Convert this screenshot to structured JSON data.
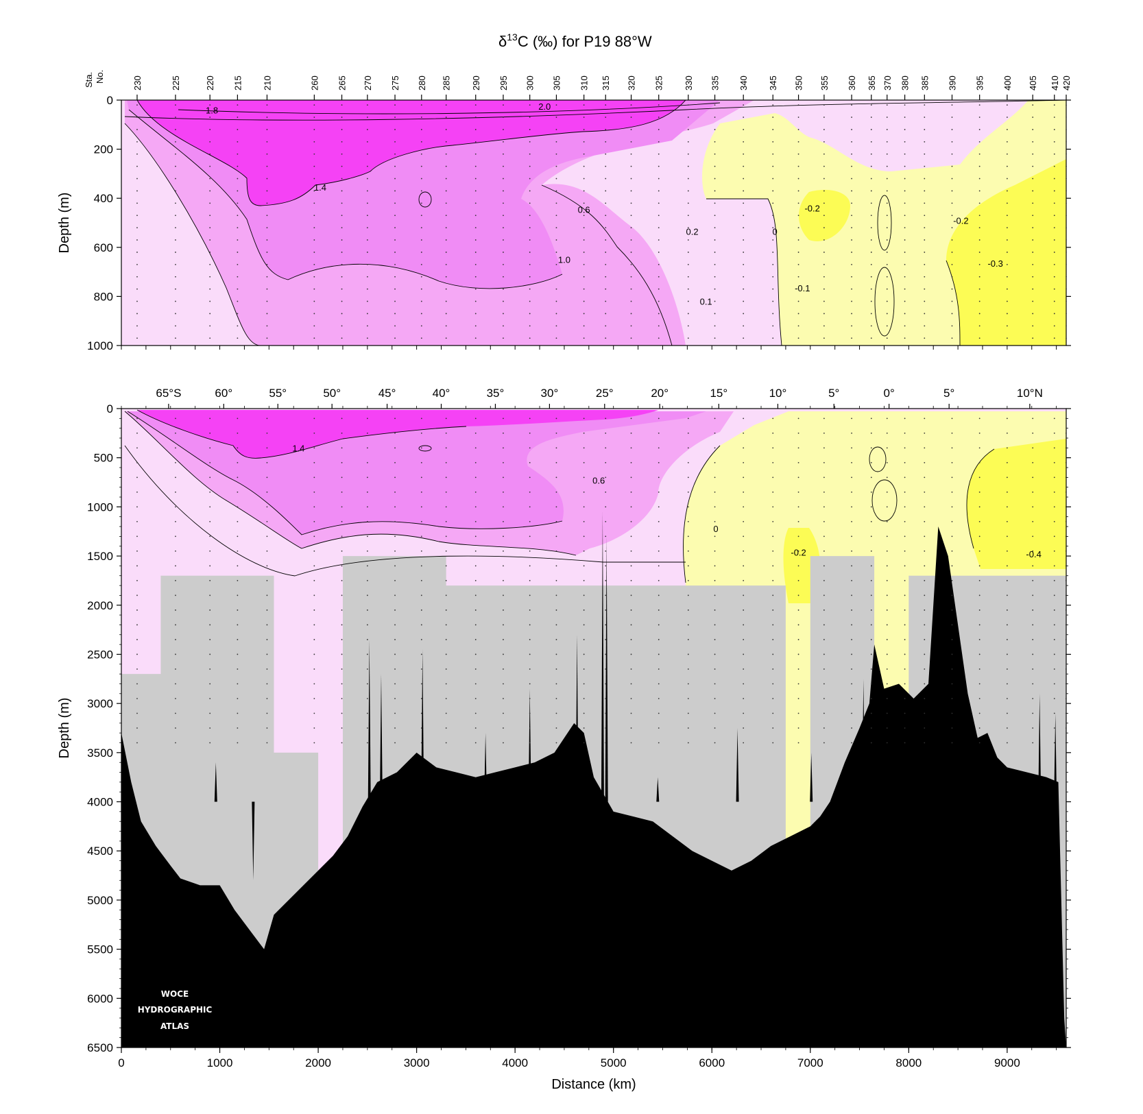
{
  "title": {
    "delta": "δ",
    "sup": "13",
    "rest": "C (‰) for P19 88°W"
  },
  "logo": [
    "WOCE",
    "HYDROGRAPHIC",
    "ATLAS"
  ],
  "colors": {
    "magenta_strong": "#f542f5",
    "magenta_mid": "#f08cf5",
    "pink_light": "#f5a8f5",
    "pink_pale": "#fadcfa",
    "yellow_pale": "#fcfcb0",
    "yellow_strong": "#fcfc55",
    "masked_gray": "#cccccc",
    "bathymetry": "#000000"
  },
  "chart_data": [
    {
      "type": "heatmap",
      "panel": "upper",
      "ylabel": "Depth (m)",
      "ylim": [
        1000,
        0
      ],
      "xlim": [
        0,
        9600
      ],
      "yticks": [
        0,
        200,
        400,
        600,
        800,
        1000
      ],
      "station_axis_label": [
        "Sta.",
        "No."
      ],
      "stations": [
        {
          "label": "230",
          "km": 160
        },
        {
          "label": "225",
          "km": 550
        },
        {
          "label": "220",
          "km": 900
        },
        {
          "label": "215",
          "km": 1180
        },
        {
          "label": "210",
          "km": 1480
        },
        {
          "label": "260",
          "km": 1960
        },
        {
          "label": "265",
          "km": 2240
        },
        {
          "label": "270",
          "km": 2500
        },
        {
          "label": "275",
          "km": 2780
        },
        {
          "label": "280",
          "km": 3050
        },
        {
          "label": "285",
          "km": 3300
        },
        {
          "label": "290",
          "km": 3600
        },
        {
          "label": "295",
          "km": 3880
        },
        {
          "label": "300",
          "km": 4150
        },
        {
          "label": "305",
          "km": 4420
        },
        {
          "label": "310",
          "km": 4700
        },
        {
          "label": "315",
          "km": 4920
        },
        {
          "label": "320",
          "km": 5180
        },
        {
          "label": "325",
          "km": 5460
        },
        {
          "label": "330",
          "km": 5760
        },
        {
          "label": "335",
          "km": 6030
        },
        {
          "label": "340",
          "km": 6320
        },
        {
          "label": "345",
          "km": 6620
        },
        {
          "label": "350",
          "km": 6880
        },
        {
          "label": "355",
          "km": 7140
        },
        {
          "label": "360",
          "km": 7420
        },
        {
          "label": "365",
          "km": 7620
        },
        {
          "label": "370",
          "km": 7780
        },
        {
          "label": "380",
          "km": 7960
        },
        {
          "label": "385",
          "km": 8160
        },
        {
          "label": "390",
          "km": 8440
        },
        {
          "label": "395",
          "km": 8720
        },
        {
          "label": "400",
          "km": 9000
        },
        {
          "label": "405",
          "km": 9260
        },
        {
          "label": "410",
          "km": 9480
        },
        {
          "label": "420",
          "km": 9600
        }
      ],
      "contour_labels": [
        {
          "text": "1.8",
          "km": 920,
          "depth": 40
        },
        {
          "text": "2.0",
          "km": 4300,
          "depth": 25
        },
        {
          "text": "1.4",
          "km": 2020,
          "depth": 355
        },
        {
          "text": "0.6",
          "km": 4700,
          "depth": 445
        },
        {
          "text": "0.2",
          "km": 5800,
          "depth": 535
        },
        {
          "text": "0",
          "km": 6640,
          "depth": 535
        },
        {
          "text": "-0.2",
          "km": 7020,
          "depth": 440
        },
        {
          "text": "-0.2",
          "km": 8530,
          "depth": 490
        },
        {
          "text": "1.0",
          "km": 4500,
          "depth": 650
        },
        {
          "text": "-0.3",
          "km": 8880,
          "depth": 665
        },
        {
          "text": "-0.1",
          "km": 6920,
          "depth": 765
        },
        {
          "text": "0.1",
          "km": 5940,
          "depth": 820
        }
      ]
    },
    {
      "type": "heatmap",
      "panel": "lower",
      "xlabel": "Distance (km)",
      "ylabel": "Depth (m)",
      "xlim": [
        0,
        9600
      ],
      "ylim": [
        6500,
        0
      ],
      "xticks": [
        0,
        1000,
        2000,
        3000,
        4000,
        5000,
        6000,
        7000,
        8000,
        9000
      ],
      "yticks": [
        0,
        500,
        1000,
        1500,
        2000,
        2500,
        3000,
        3500,
        4000,
        4500,
        5000,
        5500,
        6000,
        6500
      ],
      "latitudes": [
        {
          "label": "65°S",
          "km": 480
        },
        {
          "label": "60°",
          "km": 1040
        },
        {
          "label": "55°",
          "km": 1590
        },
        {
          "label": "50°",
          "km": 2140
        },
        {
          "label": "45°",
          "km": 2700
        },
        {
          "label": "40°",
          "km": 3250
        },
        {
          "label": "35°",
          "km": 3800
        },
        {
          "label": "30°",
          "km": 4350
        },
        {
          "label": "25°",
          "km": 4910
        },
        {
          "label": "20°",
          "km": 5470
        },
        {
          "label": "15°",
          "km": 6070
        },
        {
          "label": "10°",
          "km": 6670
        },
        {
          "label": "5°",
          "km": 7240
        },
        {
          "label": "0°",
          "km": 7800
        },
        {
          "label": "5°",
          "km": 8410
        },
        {
          "label": "10°N",
          "km": 9230
        }
      ],
      "contour_labels": [
        {
          "text": "1.4",
          "km": 1800,
          "depth": 400
        },
        {
          "text": "0.6",
          "km": 4850,
          "depth": 730
        },
        {
          "text": "0",
          "km": 6040,
          "depth": 1220
        },
        {
          "text": "-0.2",
          "km": 6880,
          "depth": 1460
        },
        {
          "text": "-0.4",
          "km": 9270,
          "depth": 1480
        }
      ],
      "masked_regions_km_depth": [
        {
          "x0": 0,
          "x1": 400,
          "y_top": 2700
        },
        {
          "x0": 400,
          "x1": 1550,
          "y_top": 1700
        },
        {
          "x0": 1550,
          "x1": 2000,
          "y_top": 3500
        },
        {
          "x0": 2250,
          "x1": 3300,
          "y_top": 1500
        },
        {
          "x0": 3300,
          "x1": 6750,
          "y_top": 1800
        },
        {
          "x0": 7000,
          "x1": 7650,
          "y_top": 1500
        },
        {
          "x0": 8000,
          "x1": 9600,
          "y_top": 1700
        }
      ],
      "bathymetry_profile": [
        [
          0,
          3300
        ],
        [
          100,
          3800
        ],
        [
          200,
          4200
        ],
        [
          350,
          4450
        ],
        [
          500,
          4650
        ],
        [
          600,
          4780
        ],
        [
          800,
          4850
        ],
        [
          1000,
          4850
        ],
        [
          1150,
          5100
        ],
        [
          1300,
          5300
        ],
        [
          1450,
          5500
        ],
        [
          1550,
          5150
        ],
        [
          1700,
          5000
        ],
        [
          1850,
          4850
        ],
        [
          2000,
          4700
        ],
        [
          2150,
          4550
        ],
        [
          2300,
          4350
        ],
        [
          2450,
          4050
        ],
        [
          2600,
          3800
        ],
        [
          2800,
          3700
        ],
        [
          3000,
          3500
        ],
        [
          3200,
          3650
        ],
        [
          3400,
          3700
        ],
        [
          3600,
          3750
        ],
        [
          3800,
          3700
        ],
        [
          4000,
          3650
        ],
        [
          4200,
          3600
        ],
        [
          4400,
          3500
        ],
        [
          4600,
          3200
        ],
        [
          4700,
          3300
        ],
        [
          4800,
          3750
        ],
        [
          5000,
          4100
        ],
        [
          5200,
          4150
        ],
        [
          5400,
          4200
        ],
        [
          5600,
          4350
        ],
        [
          5800,
          4500
        ],
        [
          6000,
          4600
        ],
        [
          6200,
          4700
        ],
        [
          6400,
          4600
        ],
        [
          6600,
          4450
        ],
        [
          6800,
          4350
        ],
        [
          7000,
          4250
        ],
        [
          7100,
          4150
        ],
        [
          7200,
          4000
        ],
        [
          7350,
          3600
        ],
        [
          7500,
          3250
        ],
        [
          7600,
          3000
        ],
        [
          7650,
          2400
        ],
        [
          7750,
          2850
        ],
        [
          7900,
          2800
        ],
        [
          8050,
          2950
        ],
        [
          8200,
          2800
        ],
        [
          8300,
          1200
        ],
        [
          8400,
          1500
        ],
        [
          8500,
          2200
        ],
        [
          8600,
          2900
        ],
        [
          8700,
          3350
        ],
        [
          8800,
          3300
        ],
        [
          8900,
          3550
        ],
        [
          9000,
          3650
        ],
        [
          9200,
          3700
        ],
        [
          9400,
          3750
        ],
        [
          9520,
          3800
        ],
        [
          9580,
          6200
        ],
        [
          9600,
          6500
        ]
      ],
      "bathymetry_spikes": [
        [
          960,
          3600
        ],
        [
          1340,
          4800
        ],
        [
          2520,
          2350
        ],
        [
          2640,
          2700
        ],
        [
          3060,
          2450
        ],
        [
          3700,
          3300
        ],
        [
          4150,
          2850
        ],
        [
          4630,
          2300
        ],
        [
          4890,
          1050
        ],
        [
          4930,
          1300
        ],
        [
          5450,
          3750
        ],
        [
          6260,
          3250
        ],
        [
          7010,
          3500
        ],
        [
          7540,
          2750
        ],
        [
          9330,
          2900
        ],
        [
          9490,
          3100
        ]
      ]
    }
  ],
  "axis_labels": {
    "depth_upper": "Depth (m)",
    "depth_lower": "Depth (m)",
    "distance": "Distance (km)"
  }
}
